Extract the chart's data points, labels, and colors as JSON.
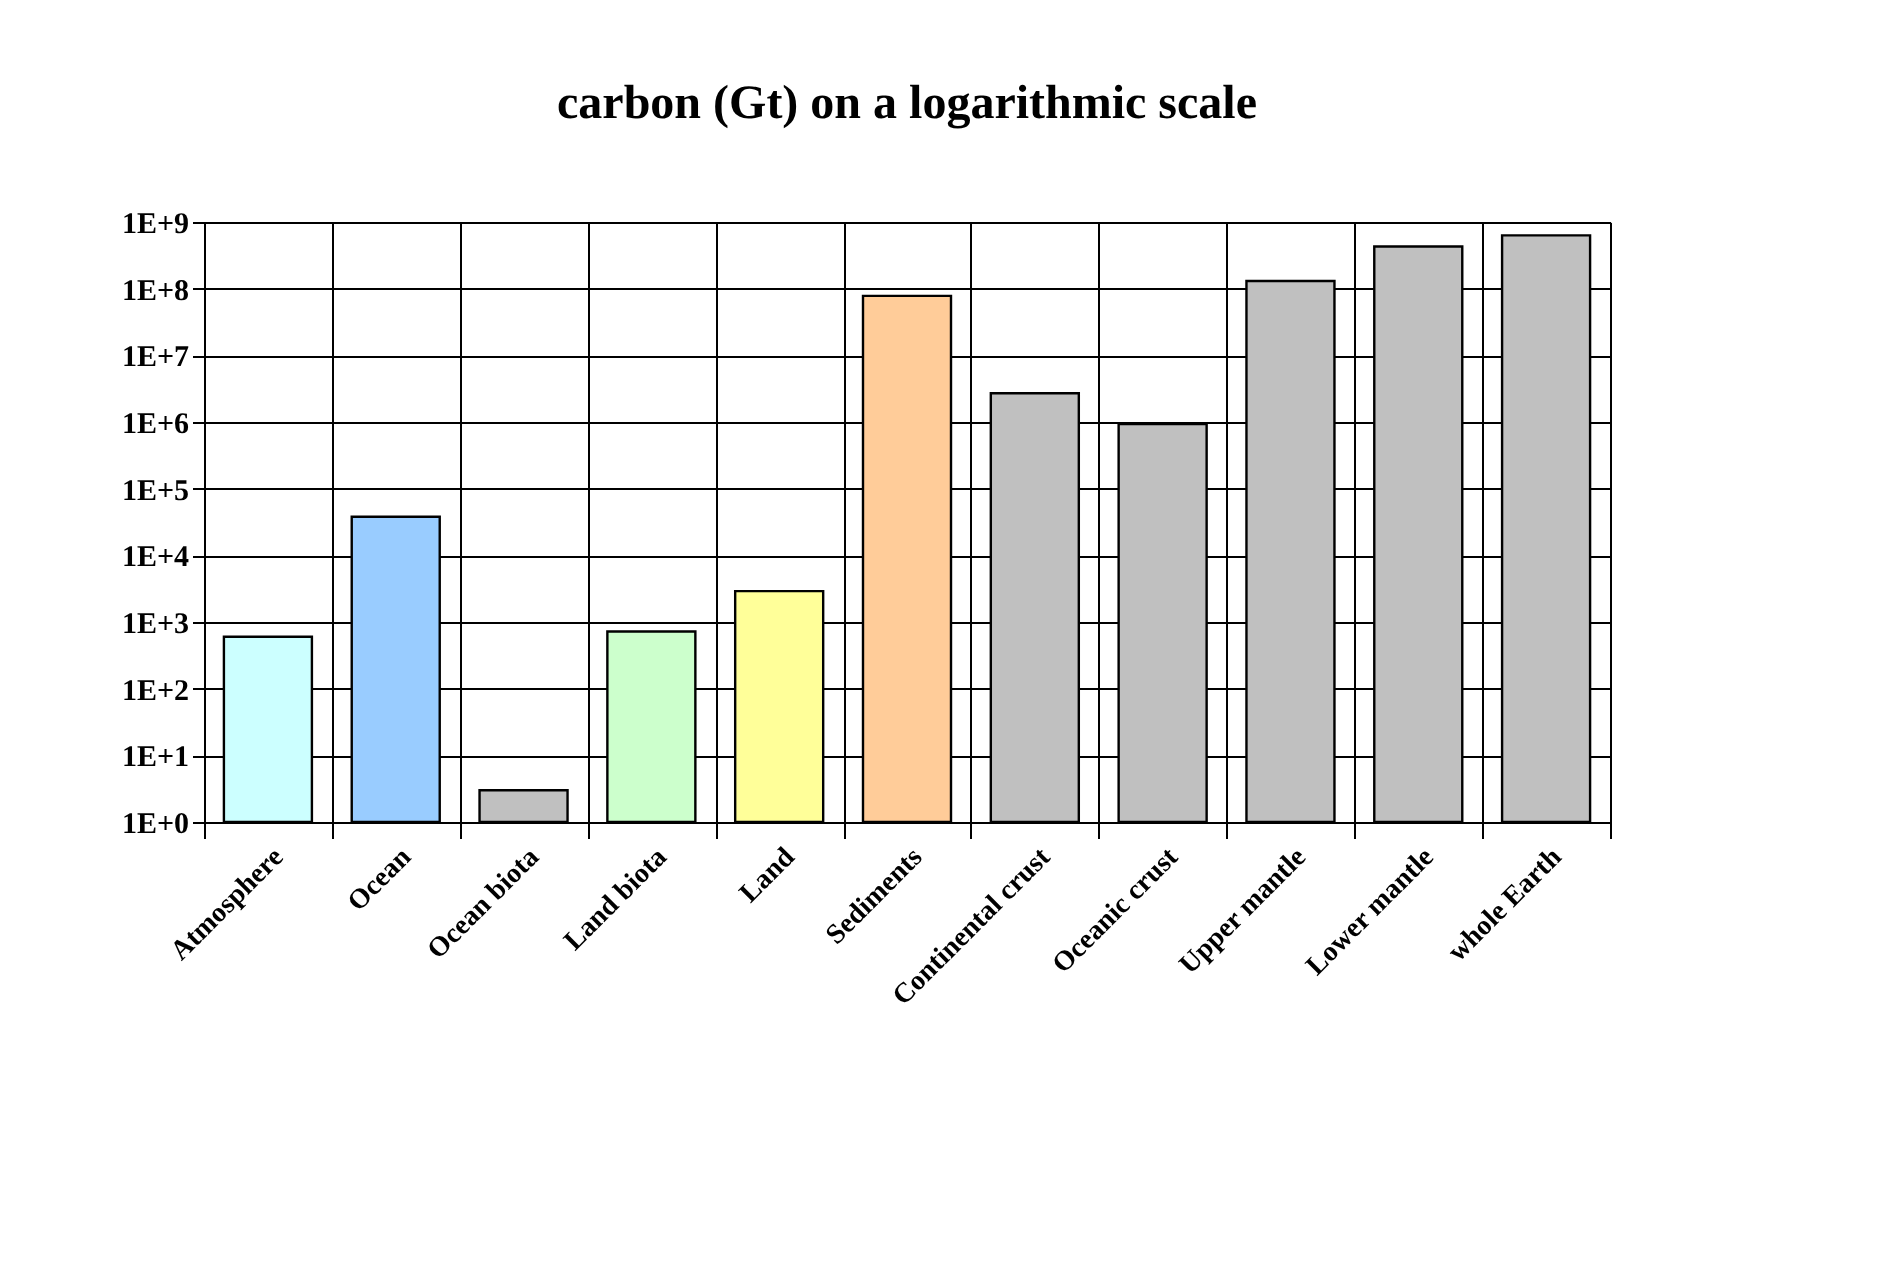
{
  "chart_data": {
    "type": "bar",
    "title": "carbon (Gt) on a logarithmic scale",
    "categories": [
      "Atmosphere",
      "Ocean",
      "Ocean biota",
      "Land biota",
      "Land",
      "Sediments",
      "Continental crust",
      "Oceanic crust",
      "Upper mantle",
      "Lower mantle",
      "whole Earth"
    ],
    "values": [
      600,
      38000,
      3,
      720,
      2900,
      78000000,
      2700000,
      930000,
      130000000,
      430000000,
      630000000
    ],
    "colors": [
      "#ccffff",
      "#99ccff",
      "#c0c0c0",
      "#ccffcc",
      "#ffff99",
      "#ffcc99",
      "#c0c0c0",
      "#c0c0c0",
      "#c0c0c0",
      "#c0c0c0",
      "#c0c0c0"
    ],
    "log": true,
    "ylim": [
      1,
      1000000000
    ],
    "yticks": [
      {
        "value": 1,
        "label": "1E+0"
      },
      {
        "value": 10,
        "label": "1E+1"
      },
      {
        "value": 100,
        "label": "1E+2"
      },
      {
        "value": 1000,
        "label": "1E+3"
      },
      {
        "value": 10000,
        "label": "1E+4"
      },
      {
        "value": 100000,
        "label": "1E+5"
      },
      {
        "value": 1000000,
        "label": "1E+6"
      },
      {
        "value": 10000000,
        "label": "1E+7"
      },
      {
        "value": 100000000,
        "label": "1E+8"
      },
      {
        "value": 1000000000,
        "label": "1E+9"
      }
    ],
    "grid": true
  }
}
